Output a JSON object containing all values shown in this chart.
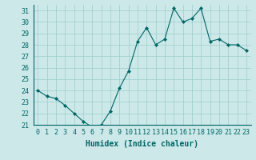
{
  "x": [
    0,
    1,
    2,
    3,
    4,
    5,
    6,
    7,
    8,
    9,
    10,
    11,
    12,
    13,
    14,
    15,
    16,
    17,
    18,
    19,
    20,
    21,
    22,
    23
  ],
  "y": [
    24.0,
    23.5,
    23.3,
    22.7,
    22.0,
    21.3,
    20.8,
    21.0,
    22.2,
    24.2,
    25.7,
    28.3,
    29.5,
    28.0,
    28.5,
    31.2,
    30.0,
    30.3,
    31.2,
    28.3,
    28.5,
    28.0,
    28.0,
    27.5
  ],
  "line_color": "#006666",
  "marker": "D",
  "marker_size": 2,
  "bg_color": "#cce8e8",
  "grid_color": "#99cccc",
  "xlabel": "Humidex (Indice chaleur)",
  "ylim": [
    21,
    31.5
  ],
  "xlim": [
    -0.5,
    23.5
  ],
  "yticks": [
    21,
    22,
    23,
    24,
    25,
    26,
    27,
    28,
    29,
    30,
    31
  ],
  "xticks": [
    0,
    1,
    2,
    3,
    4,
    5,
    6,
    7,
    8,
    9,
    10,
    11,
    12,
    13,
    14,
    15,
    16,
    17,
    18,
    19,
    20,
    21,
    22,
    23
  ],
  "tick_label_size": 6,
  "xlabel_size": 7
}
